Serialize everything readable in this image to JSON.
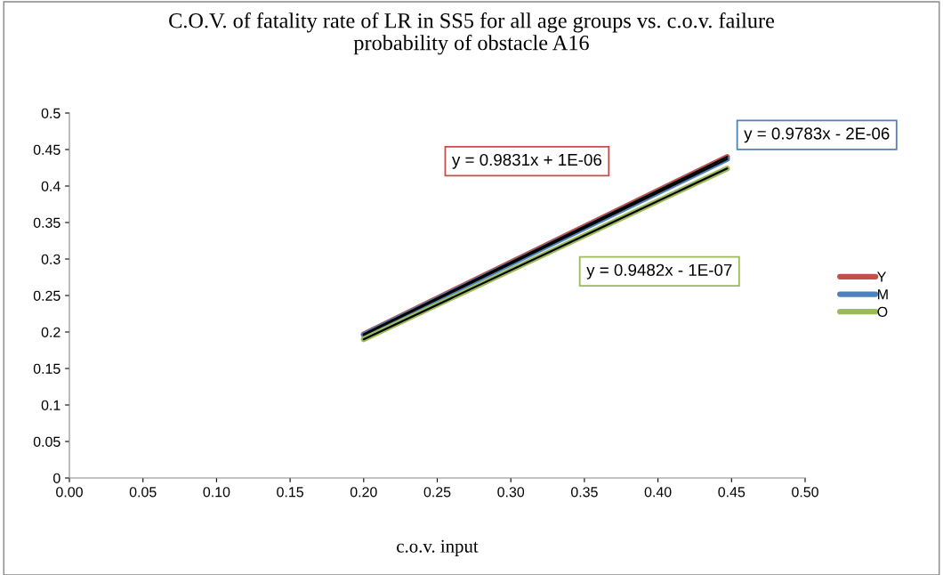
{
  "chart_data": {
    "type": "line",
    "title": "C.O.V. of fatality rate of LR in SS5 for all age groups vs. c.o.v. failure\nprobability of obstacle A16",
    "xlabel": "c.o.v. input",
    "x": [
      0.2,
      0.447
    ],
    "series": [
      {
        "name": "Y",
        "color": "#c0504d",
        "values": [
          0.197,
          0.44
        ]
      },
      {
        "name": "M",
        "color": "#4f81bd",
        "values": [
          0.196,
          0.437
        ]
      },
      {
        "name": "O",
        "color": "#9bbb59",
        "values": [
          0.19,
          0.424
        ]
      },
      {
        "color": "#000000",
        "values": [
          0.197,
          0.44
        ]
      },
      {
        "color": "#000000",
        "values": [
          0.196,
          0.437
        ]
      },
      {
        "color": "#000000",
        "values": [
          0.19,
          0.424
        ]
      }
    ],
    "annotations": [
      "y = 0.9831x + 1E-06",
      "y = 0.9783x - 2E-06",
      "y = 0.9482x - 1E-07"
    ],
    "xlim": [
      0,
      0.5
    ],
    "ylim": [
      0,
      0.5
    ],
    "xticks": [
      {
        "value": 0,
        "label": "0.00"
      },
      {
        "value": 0.05,
        "label": "0.05"
      },
      {
        "value": 0.1,
        "label": "0.10"
      },
      {
        "value": 0.15,
        "label": "0.15"
      },
      {
        "value": 0.2,
        "label": "0.20"
      },
      {
        "value": 0.25,
        "label": "0.25"
      },
      {
        "value": 0.3,
        "label": "0.30"
      },
      {
        "value": 0.35,
        "label": "0.35"
      },
      {
        "value": 0.4,
        "label": "0.40"
      },
      {
        "value": 0.45,
        "label": "0.45"
      },
      {
        "value": 0.5,
        "label": "0.50"
      }
    ],
    "yticks": [
      0,
      0.05,
      0.1,
      0.15,
      0.2,
      0.25,
      0.3,
      0.35,
      0.4,
      0.45,
      0.5
    ],
    "grid": false,
    "legend": "right",
    "marker": "none",
    "line_style": "solid"
  }
}
